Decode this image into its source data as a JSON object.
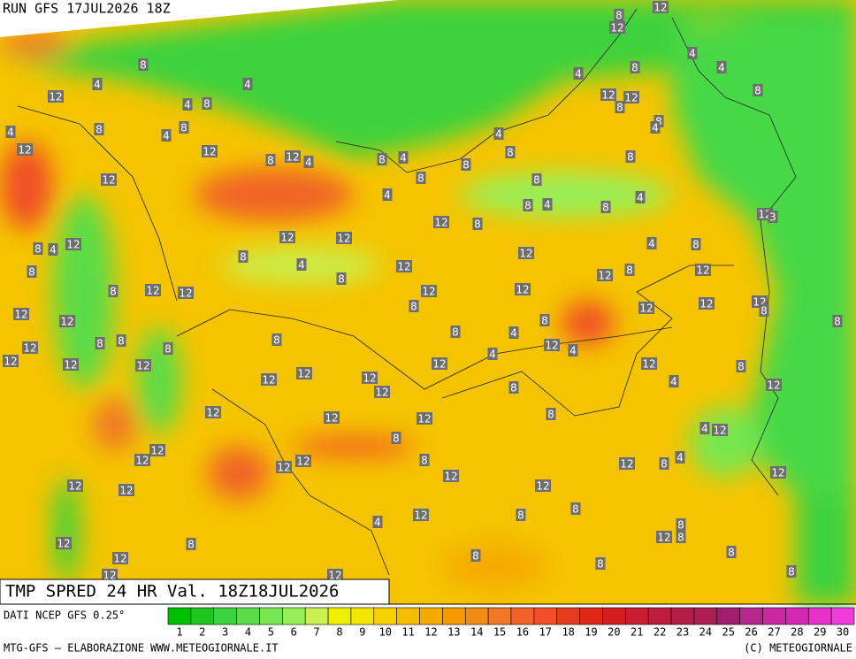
{
  "header": {
    "run": "RUN GFS 17JUL2026 18Z",
    "title": "TMP SPRED 24 HR Val. 18Z18JUL2026"
  },
  "footer": {
    "source": "DATI NCEP GFS 0.25°",
    "credit": "MTG-GFS — ELABORAZIONE WWW.METEOGIORNALE.IT",
    "copyright": "(C) METEOGIORNALE"
  },
  "legend": {
    "ticks": [
      1,
      2,
      3,
      4,
      5,
      6,
      7,
      8,
      9,
      10,
      11,
      12,
      13,
      14,
      15,
      16,
      17,
      18,
      19,
      20,
      21,
      22,
      23,
      24,
      25,
      26,
      27,
      28,
      29,
      30
    ],
    "colors": [
      "#00be00",
      "#1ec81e",
      "#3cd23c",
      "#5adc46",
      "#78e650",
      "#96f05a",
      "#c8f050",
      "#f0f000",
      "#f5e600",
      "#f5d200",
      "#f5be00",
      "#f5aa00",
      "#f59b00",
      "#f08c14",
      "#f07828",
      "#f06428",
      "#f05028",
      "#e63c1e",
      "#dc2814",
      "#d21e1e",
      "#c81e32",
      "#be1e3c",
      "#b41e46",
      "#aa1e50",
      "#a01e6e",
      "#b4288c",
      "#c828a0",
      "#d228b4",
      "#e632c8",
      "#f03cdc"
    ]
  },
  "contour_labels": [
    "12",
    "8",
    "12",
    "8",
    "4",
    "8",
    "4",
    "4",
    "8",
    "4",
    "4",
    "12",
    "4",
    "8",
    "12",
    "12",
    "8",
    "8",
    "4",
    "4",
    "8",
    "4",
    "8",
    "4",
    "8",
    "12",
    "12",
    "8",
    "12",
    "4",
    "8",
    "4",
    "8",
    "8",
    "12",
    "8",
    "8",
    "4",
    "8",
    "4",
    "8",
    "4",
    "12",
    "3",
    "12",
    "8",
    "12",
    "12",
    "4",
    "8",
    "8",
    "4",
    "12",
    "8",
    "12",
    "4",
    "8",
    "12",
    "12",
    "8",
    "12",
    "8",
    "8",
    "12",
    "12",
    "12",
    "12",
    "8",
    "12",
    "12",
    "12",
    "8",
    "12",
    "12",
    "8",
    "8",
    "8",
    "4",
    "8",
    "8",
    "8",
    "12",
    "4",
    "8",
    "12",
    "4",
    "12",
    "12",
    "12",
    "12",
    "12",
    "8",
    "12",
    "12",
    "12",
    "12",
    "8",
    "4",
    "12",
    "12",
    "12",
    "12",
    "8",
    "4",
    "12",
    "8",
    "12",
    "12",
    "12",
    "12",
    "8",
    "12",
    "8",
    "4",
    "12",
    "12",
    "12",
    "12",
    "12",
    "8",
    "12",
    "8",
    "4",
    "8",
    "12",
    "8",
    "12",
    "8",
    "8",
    "12",
    "8",
    "12",
    "8",
    "12",
    "8"
  ]
}
